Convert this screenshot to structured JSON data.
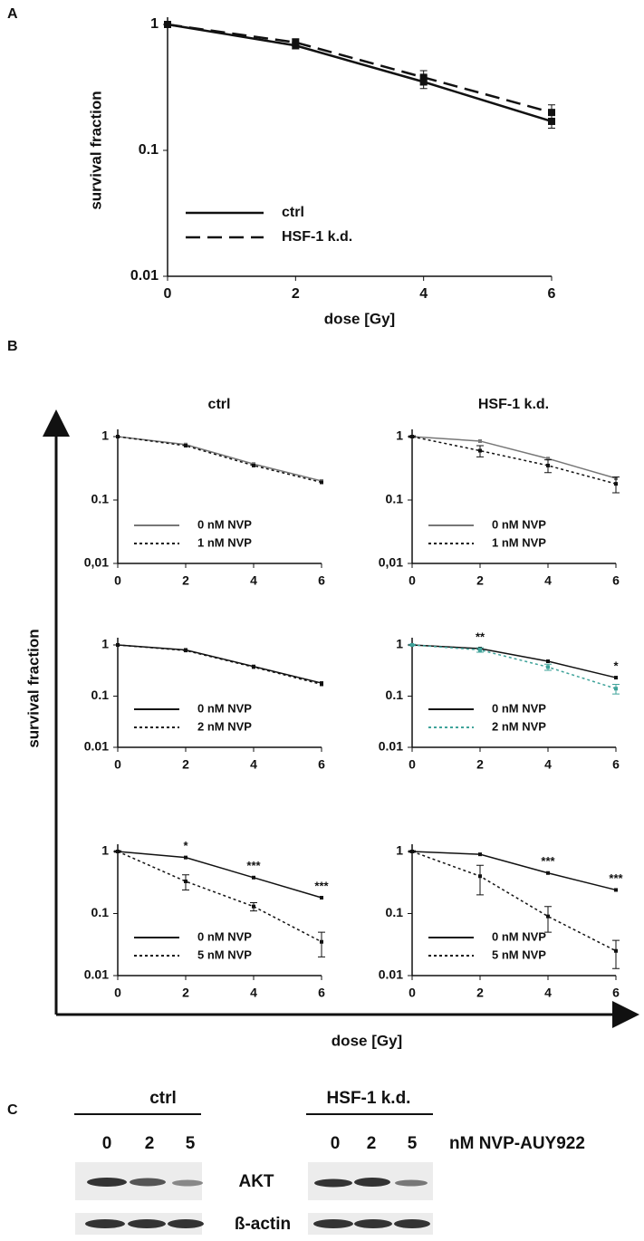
{
  "panel_labels": [
    "A",
    "B",
    "C"
  ],
  "panel_b": {
    "column_titles": [
      "ctrl",
      "HSF-1 k.d."
    ],
    "ylabel": "survival fraction",
    "xlabel": "dose [Gy]"
  },
  "blot": {
    "groups": [
      "ctrl",
      "HSF-1 k.d."
    ],
    "lanes": [
      "0",
      "2",
      "5",
      "0",
      "2",
      "5"
    ],
    "unit": "nM NVP-AUY922",
    "proteins": [
      "AKT",
      "ß-actin"
    ]
  },
  "chart_data": [
    {
      "type": "line",
      "xlabel": "dose [Gy]",
      "ylabel": "survival fraction",
      "log_y": true,
      "legend": "lower left",
      "markers": true,
      "x": [
        0,
        2,
        4,
        6
      ],
      "xlim": [
        0,
        6
      ],
      "xticks": [
        0,
        2,
        4,
        6
      ],
      "ylim": [
        0.01,
        1
      ],
      "yticks": [
        0.01,
        0.1,
        1
      ],
      "series": [
        {
          "name": "ctrl",
          "color": "#111111",
          "dash": "solid",
          "values": [
            1,
            0.68,
            0.35,
            0.17
          ],
          "errors": [
            0.03,
            0.04,
            0.04,
            0.02
          ]
        },
        {
          "name": "HSF-1 k.d.",
          "color": "#111111",
          "dash": "dashed",
          "values": [
            1,
            0.72,
            0.38,
            0.2
          ],
          "errors": [
            0.03,
            0.05,
            0.05,
            0.03
          ]
        }
      ]
    },
    {
      "type": "line",
      "log_y": true,
      "legend": "lower left",
      "x": [
        0,
        2,
        4,
        6
      ],
      "xlim": [
        0,
        6
      ],
      "xticks": [
        0,
        2,
        4,
        6
      ],
      "ylim": [
        0.01,
        1
      ],
      "yticks": [
        {
          "value": 0.01,
          "label": "0,01"
        },
        0.1,
        1
      ],
      "series": [
        {
          "name": "0 nM NVP",
          "color": "#777777",
          "dash": "solid",
          "values": [
            1,
            0.75,
            0.37,
            0.2
          ]
        },
        {
          "name": "1 nM NVP",
          "color": "#111111",
          "dash": "dotted",
          "values": [
            1,
            0.72,
            0.35,
            0.19
          ]
        }
      ]
    },
    {
      "type": "line",
      "log_y": true,
      "legend": "lower left",
      "x": [
        0,
        2,
        4,
        6
      ],
      "xlim": [
        0,
        6
      ],
      "xticks": [
        0,
        2,
        4,
        6
      ],
      "ylim": [
        0.01,
        1
      ],
      "yticks": [
        {
          "value": 0.01,
          "label": "0,01"
        },
        0.1,
        1
      ],
      "series": [
        {
          "name": "0 nM NVP",
          "color": "#777777",
          "dash": "solid",
          "values": [
            1,
            0.85,
            0.45,
            0.22
          ]
        },
        {
          "name": "1 nM NVP",
          "color": "#111111",
          "dash": "dotted",
          "values": [
            1,
            0.6,
            0.35,
            0.18
          ],
          "errors": [
            0.03,
            0.12,
            0.08,
            0.05
          ]
        }
      ]
    },
    {
      "type": "line",
      "log_y": true,
      "legend": "lower left",
      "x": [
        0,
        2,
        4,
        6
      ],
      "xlim": [
        0,
        6
      ],
      "xticks": [
        0,
        2,
        4,
        6
      ],
      "ylim": [
        0.01,
        1
      ],
      "yticks": [
        0.01,
        0.1,
        1
      ],
      "series": [
        {
          "name": "0 nM NVP",
          "color": "#111111",
          "dash": "solid",
          "values": [
            1,
            0.8,
            0.38,
            0.18
          ]
        },
        {
          "name": "2 nM NVP",
          "color": "#111111",
          "dash": "dotted",
          "values": [
            1,
            0.78,
            0.37,
            0.17
          ]
        }
      ]
    },
    {
      "type": "line",
      "log_y": true,
      "legend": "lower left",
      "x": [
        0,
        2,
        4,
        6
      ],
      "xlim": [
        0,
        6
      ],
      "xticks": [
        0,
        2,
        4,
        6
      ],
      "ylim": [
        0.01,
        1
      ],
      "yticks": [
        0.01,
        0.1,
        1
      ],
      "annotations": [
        {
          "x": 2,
          "text": "**"
        },
        {
          "x": 6,
          "text": "*"
        }
      ],
      "series": [
        {
          "name": "0 nM NVP",
          "color": "#111111",
          "dash": "solid",
          "values": [
            1,
            0.85,
            0.48,
            0.23
          ]
        },
        {
          "name": "2 nM NVP",
          "color": "#3fa39a",
          "dash": "dotted",
          "values": [
            1,
            0.8,
            0.37,
            0.14
          ],
          "errors": [
            0.03,
            0.08,
            0.05,
            0.03
          ]
        }
      ]
    },
    {
      "type": "line",
      "log_y": true,
      "legend": "lower left",
      "x": [
        0,
        2,
        4,
        6
      ],
      "xlim": [
        0,
        6
      ],
      "xticks": [
        0,
        2,
        4,
        6
      ],
      "ylim": [
        0.01,
        1
      ],
      "yticks": [
        0.01,
        0.1,
        1
      ],
      "annotations": [
        {
          "x": 2,
          "text": "*"
        },
        {
          "x": 4,
          "text": "***"
        },
        {
          "x": 6,
          "text": "***"
        }
      ],
      "series": [
        {
          "name": "0 nM NVP",
          "color": "#111111",
          "dash": "solid",
          "values": [
            1,
            0.8,
            0.38,
            0.18
          ]
        },
        {
          "name": "5 nM NVP",
          "color": "#111111",
          "dash": "dotted",
          "values": [
            1,
            0.33,
            0.13,
            0.035
          ],
          "errors": [
            0.03,
            0.09,
            0.02,
            0.015
          ]
        }
      ]
    },
    {
      "type": "line",
      "log_y": true,
      "legend": "lower left",
      "x": [
        0,
        2,
        4,
        6
      ],
      "xlim": [
        0,
        6
      ],
      "xticks": [
        0,
        2,
        4,
        6
      ],
      "ylim": [
        0.01,
        1
      ],
      "yticks": [
        0.01,
        0.1,
        1
      ],
      "annotations": [
        {
          "x": 4,
          "text": "***"
        },
        {
          "x": 6,
          "text": "***"
        }
      ],
      "series": [
        {
          "name": "0 nM NVP",
          "color": "#111111",
          "dash": "solid",
          "values": [
            1,
            0.9,
            0.45,
            0.24
          ]
        },
        {
          "name": "5 nM NVP",
          "color": "#111111",
          "dash": "dotted",
          "values": [
            1,
            0.4,
            0.09,
            0.025
          ],
          "errors": [
            0.03,
            0.2,
            0.04,
            0.012
          ]
        }
      ]
    }
  ]
}
